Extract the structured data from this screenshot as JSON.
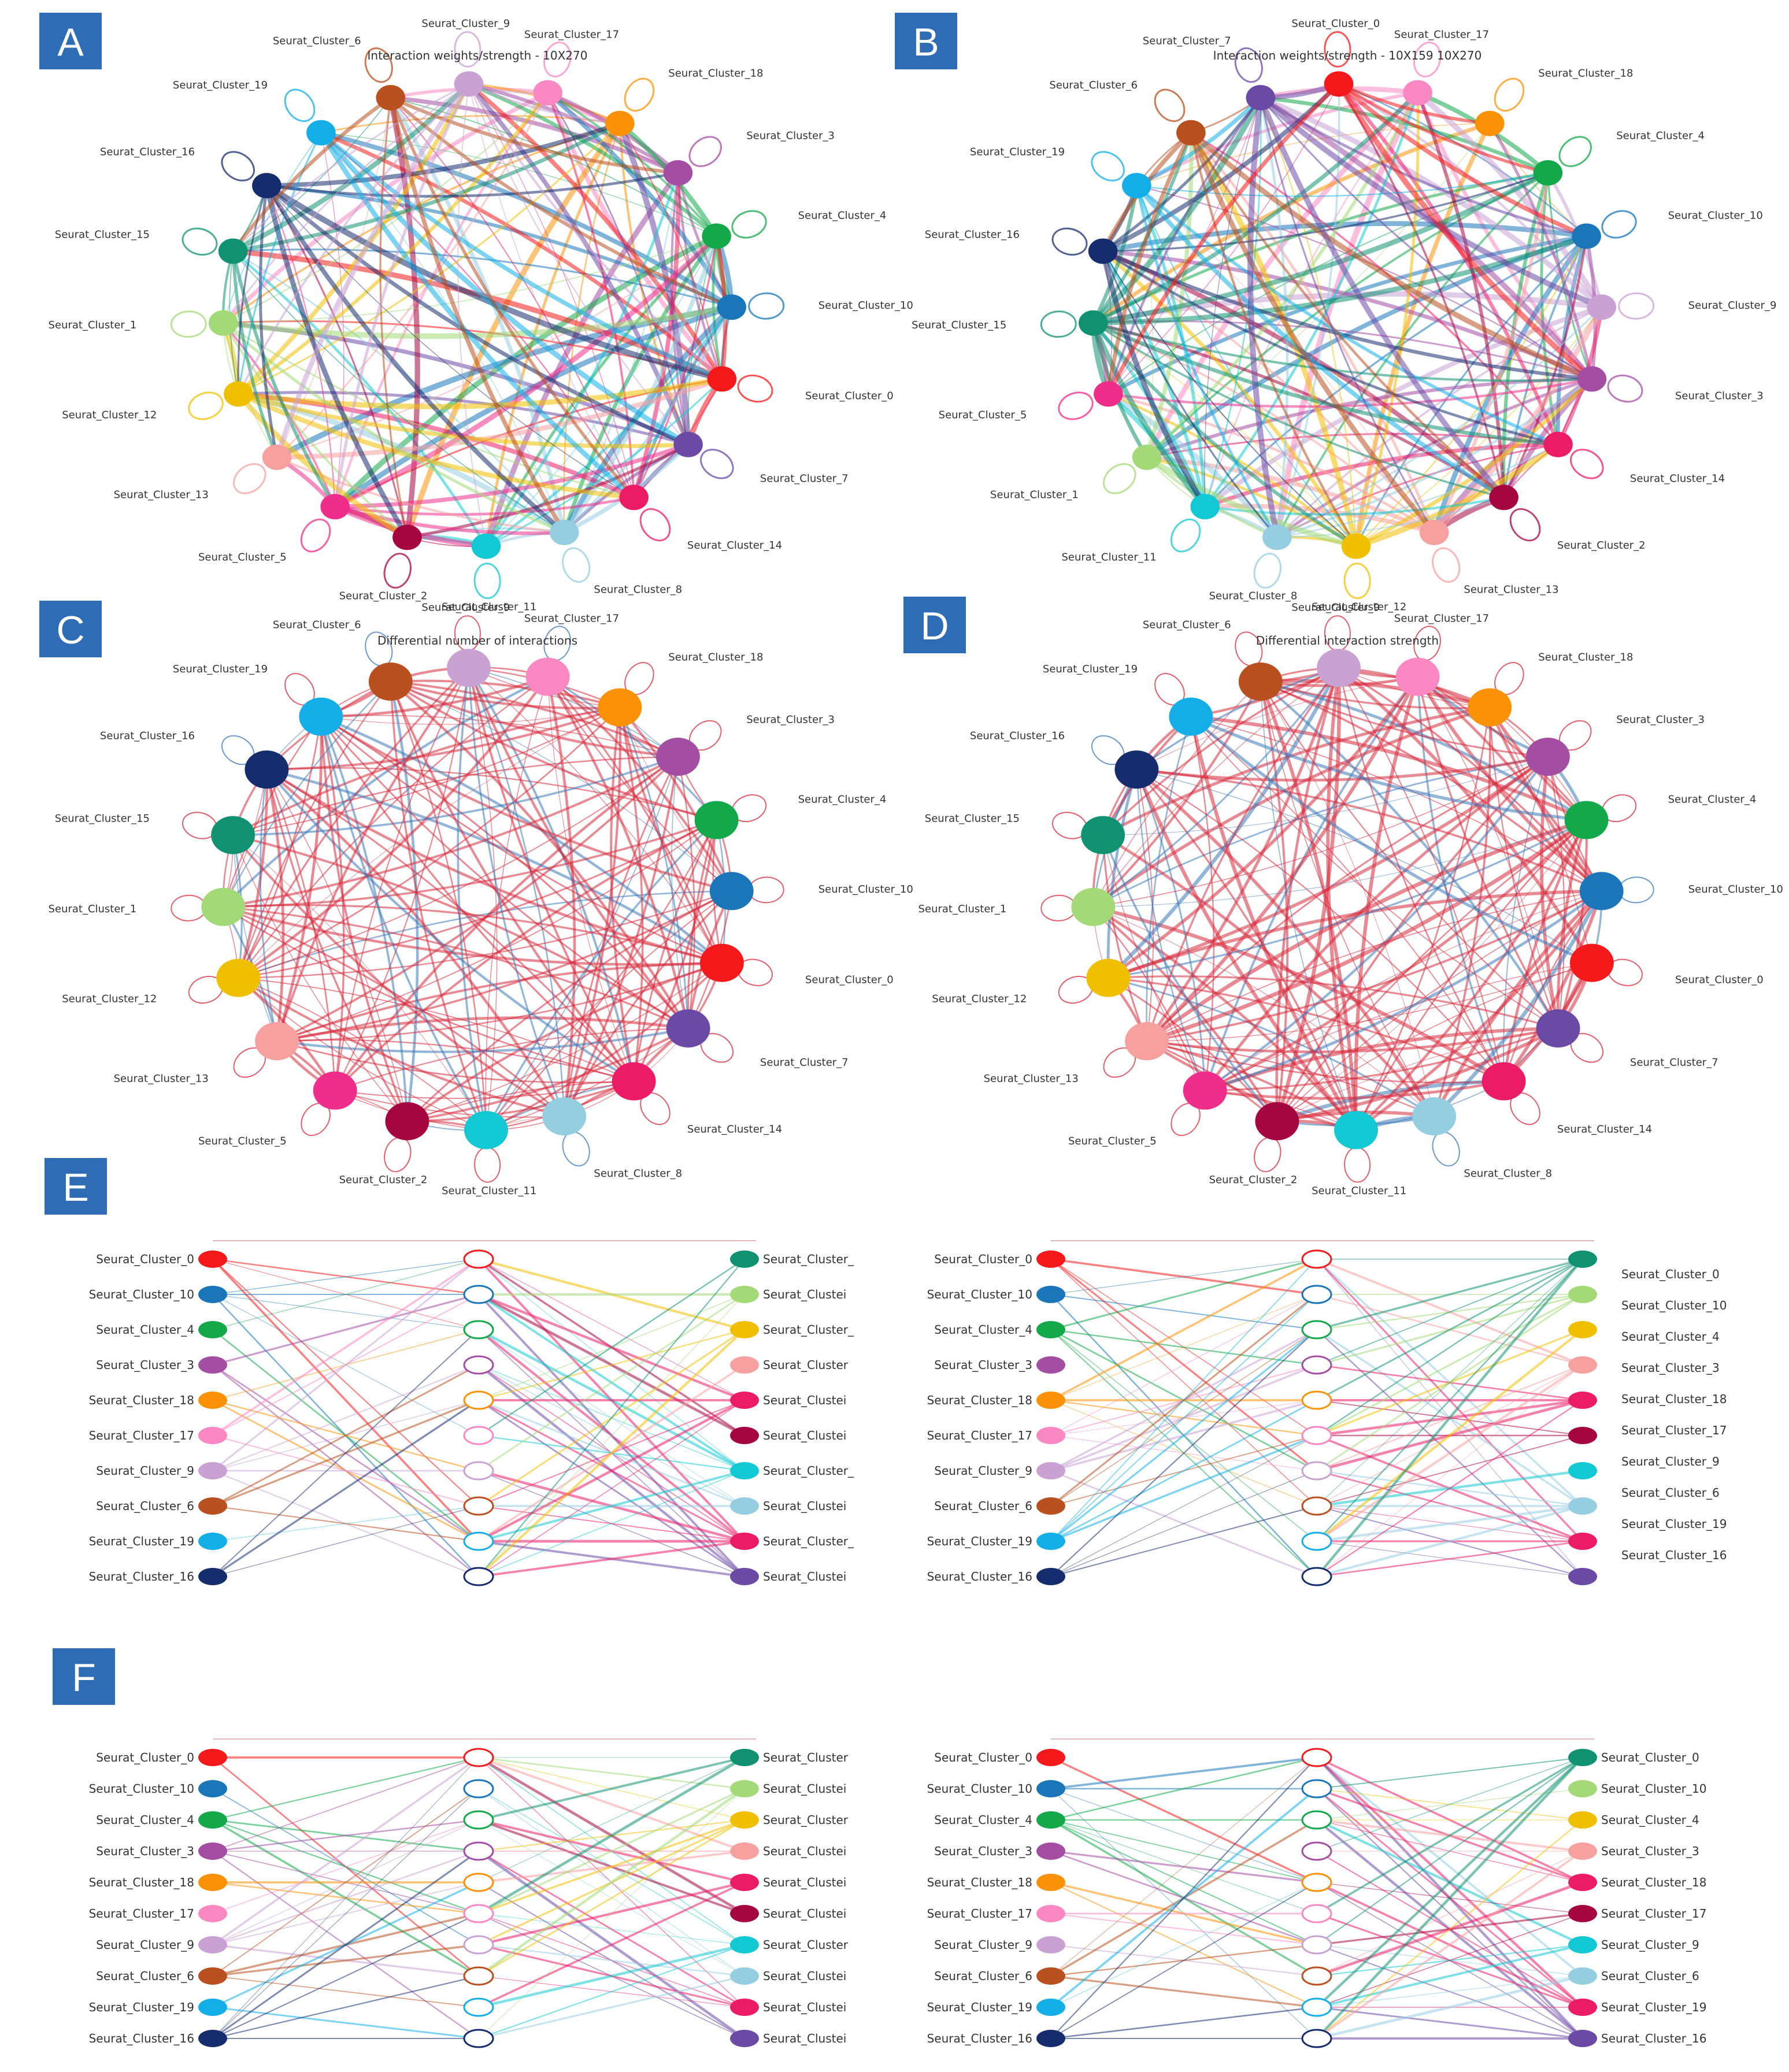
{
  "panels": [
    {
      "letter": "A",
      "title": "Interaction weights/strength - 10X270"
    },
    {
      "letter": "B",
      "title": "Interaction weights/strength - 10X159 10X270"
    },
    {
      "letter": "C",
      "title": "Differential number of interactions"
    },
    {
      "letter": "D",
      "title": "Differential interaction strength"
    },
    {
      "letter": "E",
      "title": ""
    },
    {
      "letter": "F",
      "title": ""
    }
  ],
  "circles": {
    "A": [
      "Seurat_Cluster_17",
      "Seurat_Cluster_18",
      "Seurat_Cluster_3",
      "Seurat_Cluster_4",
      "Seurat_Cluster_10",
      "Seurat_Cluster_0",
      "Seurat_Cluster_7",
      "Seurat_Cluster_14",
      "Seurat_Cluster_8",
      "Seurat_Cluster_11",
      "Seurat_Cluster_2",
      "Seurat_Cluster_5",
      "Seurat_Cluster_13",
      "Seurat_Cluster_12",
      "Seurat_Cluster_1",
      "Seurat_Cluster_15",
      "Seurat_Cluster_16",
      "Seurat_Cluster_19",
      "Seurat_Cluster_6",
      "Seurat_Cluster_9"
    ],
    "B": [
      "Seurat_Cluster_17",
      "Seurat_Cluster_18",
      "Seurat_Cluster_4",
      "Seurat_Cluster_10",
      "Seurat_Cluster_9",
      "Seurat_Cluster_3",
      "Seurat_Cluster_14",
      "Seurat_Cluster_2",
      "Seurat_Cluster_13",
      "Seurat_Cluster_12",
      "Seurat_Cluster_8",
      "Seurat_Cluster_11",
      "Seurat_Cluster_1",
      "Seurat_Cluster_5",
      "Seurat_Cluster_15",
      "Seurat_Cluster_16",
      "Seurat_Cluster_19",
      "Seurat_Cluster_6",
      "Seurat_Cluster_7",
      "Seurat_Cluster_0"
    ],
    "C": [
      "Seurat_Cluster_17",
      "Seurat_Cluster_18",
      "Seurat_Cluster_3",
      "Seurat_Cluster_4",
      "Seurat_Cluster_10",
      "Seurat_Cluster_0",
      "Seurat_Cluster_7",
      "Seurat_Cluster_14",
      "Seurat_Cluster_8",
      "Seurat_Cluster_11",
      "Seurat_Cluster_2",
      "Seurat_Cluster_5",
      "Seurat_Cluster_13",
      "Seurat_Cluster_12",
      "Seurat_Cluster_1",
      "Seurat_Cluster_15",
      "Seurat_Cluster_16",
      "Seurat_Cluster_19",
      "Seurat_Cluster_6",
      "Seurat_Cluster_9"
    ],
    "D": [
      "Seurat_Cluster_17",
      "Seurat_Cluster_18",
      "Seurat_Cluster_3",
      "Seurat_Cluster_4",
      "Seurat_Cluster_10",
      "Seurat_Cluster_0",
      "Seurat_Cluster_7",
      "Seurat_Cluster_14",
      "Seurat_Cluster_8",
      "Seurat_Cluster_11",
      "Seurat_Cluster_2",
      "Seurat_Cluster_5",
      "Seurat_Cluster_13",
      "Seurat_Cluster_12",
      "Seurat_Cluster_1",
      "Seurat_Cluster_15",
      "Seurat_Cluster_16",
      "Seurat_Cluster_19",
      "Seurat_Cluster_6",
      "Seurat_Cluster_9"
    ]
  },
  "cluster_colors": {
    "Seurat_Cluster_0": "#f5191c",
    "Seurat_Cluster_1": "#a3d977",
    "Seurat_Cluster_2": "#a6063f",
    "Seurat_Cluster_3": "#a34da3",
    "Seurat_Cluster_4": "#13a84a",
    "Seurat_Cluster_5": "#ef2d8a",
    "Seurat_Cluster_6": "#b8501f",
    "Seurat_Cluster_7": "#6a4aa4",
    "Seurat_Cluster_8": "#95cde1",
    "Seurat_Cluster_9": "#c9a2d3",
    "Seurat_Cluster_10": "#1a76b9",
    "Seurat_Cluster_11": "#12c8d2",
    "Seurat_Cluster_12": "#f0c000",
    "Seurat_Cluster_13": "#f7a0a0",
    "Seurat_Cluster_14": "#ec1b66",
    "Seurat_Cluster_15": "#109272",
    "Seurat_Cluster_16": "#152c6d",
    "Seurat_Cluster_17": "#fb88c3",
    "Seurat_Cluster_18": "#fb9206",
    "Seurat_Cluster_19": "#13aee8"
  },
  "edge_colors": {
    "increase": "#d62a3c",
    "decrease": "#3a78b8"
  },
  "hive": {
    "source_labels": [
      "Seurat_Cluster_0",
      "Seurat_Cluster_10",
      "Seurat_Cluster_4",
      "Seurat_Cluster_3",
      "Seurat_Cluster_18",
      "Seurat_Cluster_17",
      "Seurat_Cluster_9",
      "Seurat_Cluster_6",
      "Seurat_Cluster_19",
      "Seurat_Cluster_16"
    ],
    "target_colors": [
      "#109272",
      "#a3d977",
      "#f0c000",
      "#f7a0a0",
      "#ec1b66",
      "#a6063f",
      "#12c8d2",
      "#95cde1",
      "#ec1b66",
      "#6a4aa4"
    ],
    "E_left_target_labels": [
      "Seurat_Cluster_",
      "Seurat_Clustei",
      "Seurat_Cluster_",
      "Seurat_Cluster",
      "Seurat_Clustei",
      "Seurat_Clustei",
      "Seurat_Cluster_",
      "Seurat_Clustei",
      "Seurat_Cluster_",
      "Seurat_Clustei"
    ],
    "E_right_target_labels": [
      "Seurat_Cluster_0",
      "Seurat_Cluster_10",
      "Seurat_Cluster_4",
      "Seurat_Cluster_3",
      "Seurat_Cluster_18",
      "Seurat_Cluster_17",
      "Seurat_Cluster_9",
      "Seurat_Cluster_6",
      "Seurat_Cluster_19",
      "Seurat_Cluster_16"
    ],
    "F_left_target_labels": [
      "Seurat_Cluster",
      "Seurat_Clustei",
      "Seurat_Cluster",
      "Seurat_Clustei",
      "Seurat_Clustei",
      "Seurat_Clustei",
      "Seurat_Cluster",
      "Seurat_Clustei",
      "Seurat_Clustei",
      "Seurat_Clustei"
    ],
    "F_right_target_labels": [
      "Seurat_Cluster_0",
      "Seurat_Cluster_10",
      "Seurat_Cluster_4",
      "Seurat_Cluster_3",
      "Seurat_Cluster_18",
      "Seurat_Cluster_17",
      "Seurat_Cluster_9",
      "Seurat_Cluster_6",
      "Seurat_Cluster_19",
      "Seurat_Cluster_16"
    ]
  }
}
